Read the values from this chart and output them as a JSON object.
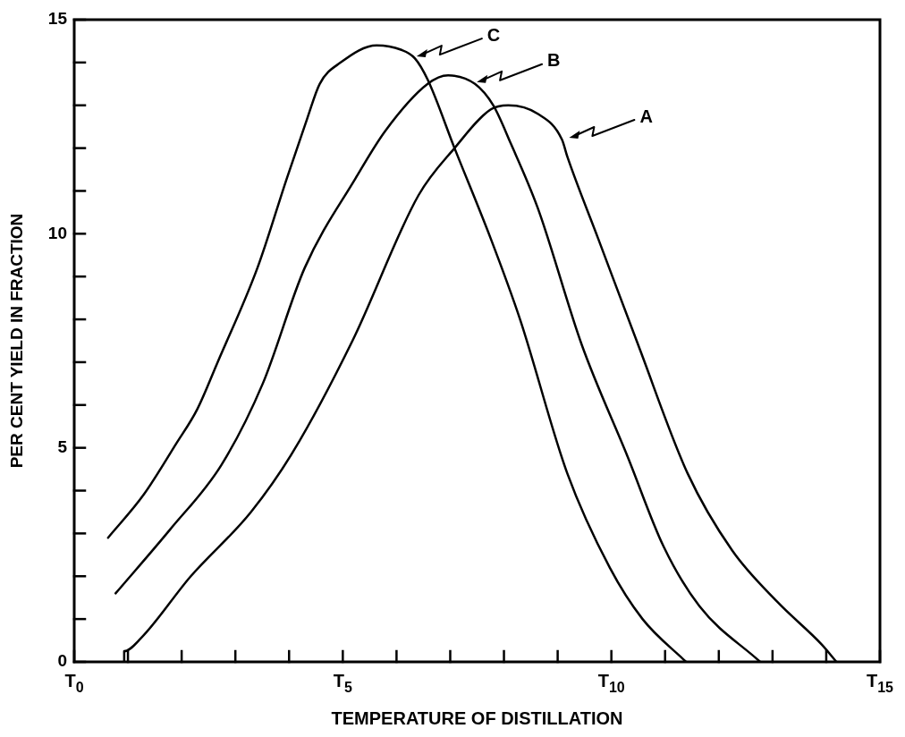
{
  "chart_data": {
    "type": "line",
    "xlabel": "TEMPERATURE OF DISTILLATION",
    "ylabel": "PER CENT YIELD IN FRACTION",
    "xlim": [
      0,
      15
    ],
    "ylim": [
      0,
      15
    ],
    "xticks": [
      {
        "value": 0,
        "label": "T$_{0}$"
      },
      {
        "value": 1,
        "label": null
      },
      {
        "value": 2,
        "label": null
      },
      {
        "value": 3,
        "label": null
      },
      {
        "value": 4,
        "label": null
      },
      {
        "value": 5,
        "label": "T$_{5}$"
      },
      {
        "value": 6,
        "label": null
      },
      {
        "value": 7,
        "label": null
      },
      {
        "value": 8,
        "label": null
      },
      {
        "value": 9,
        "label": null
      },
      {
        "value": 10,
        "label": "T$_{10}$"
      },
      {
        "value": 11,
        "label": null
      },
      {
        "value": 12,
        "label": null
      },
      {
        "value": 13,
        "label": null
      },
      {
        "value": 14,
        "label": null
      },
      {
        "value": 15,
        "label": "T$_{15}$"
      }
    ],
    "yticks": [
      0,
      {
        "value": 1,
        "label": null
      },
      {
        "value": 2,
        "label": null
      },
      {
        "value": 3,
        "label": null
      },
      {
        "value": 4,
        "label": null
      },
      5,
      {
        "value": 6,
        "label": null
      },
      {
        "value": 7,
        "label": null
      },
      {
        "value": 8,
        "label": null
      },
      {
        "value": 9,
        "label": null
      },
      10,
      {
        "value": 11,
        "label": null
      },
      {
        "value": 12,
        "label": null
      },
      {
        "value": 13,
        "label": null
      },
      {
        "value": 14,
        "label": null
      },
      15
    ],
    "annotations": [
      {
        "text": "A",
        "x": 9.18,
        "y": 12.2
      },
      {
        "text": "B",
        "x": 7.46,
        "y": 13.5
      },
      {
        "text": "C",
        "x": 6.34,
        "y": 14.1
      }
    ],
    "grid": false,
    "legend": false,
    "marker": "none",
    "line_style": "solid",
    "series": [
      {
        "color": "#000000",
        "x": [
          0.93,
          0.93,
          1.24,
          2.17,
          3.29,
          4.07,
          5.18,
          6.41,
          7.08,
          7.75,
          8.08,
          8.63,
          9.08,
          9.18,
          9.75,
          10.5,
          11.42,
          12.25,
          13.09,
          13.92,
          14.19
        ],
        "values": [
          0,
          0.25,
          0.55,
          2.0,
          3.5,
          4.9,
          7.5,
          10.9,
          12.0,
          12.9,
          13.0,
          12.8,
          12.2,
          11.8,
          9.9,
          7.4,
          4.4,
          2.6,
          1.4,
          0.4,
          0
        ]
      },
      {
        "color": "#000000",
        "x": [
          0.77,
          1.79,
          2.74,
          3.51,
          4.29,
          5.24,
          5.79,
          6.58,
          6.96,
          7.46,
          7.8,
          8.13,
          8.63,
          9.45,
          10.3,
          10.97,
          11.64,
          12.77
        ],
        "values": [
          1.6,
          3.1,
          4.6,
          6.5,
          9.2,
          11.3,
          12.4,
          13.5,
          13.7,
          13.5,
          13.0,
          12.1,
          10.6,
          7.4,
          4.8,
          2.7,
          1.3,
          0
        ]
      },
      {
        "color": "#000000",
        "x": [
          0.63,
          1.29,
          1.9,
          2.29,
          2.67,
          3.41,
          3.96,
          4.34,
          4.57,
          4.96,
          5.63,
          6.08,
          6.34,
          6.58,
          7.08,
          7.75,
          8.3,
          9.18,
          9.97,
          10.58,
          11.39
        ],
        "values": [
          2.9,
          3.9,
          5.1,
          5.9,
          7.0,
          9.2,
          11.3,
          12.7,
          13.5,
          14.0,
          14.4,
          14.3,
          14.1,
          13.6,
          12.0,
          9.9,
          8.0,
          4.4,
          2.2,
          1.0,
          0
        ]
      }
    ]
  }
}
